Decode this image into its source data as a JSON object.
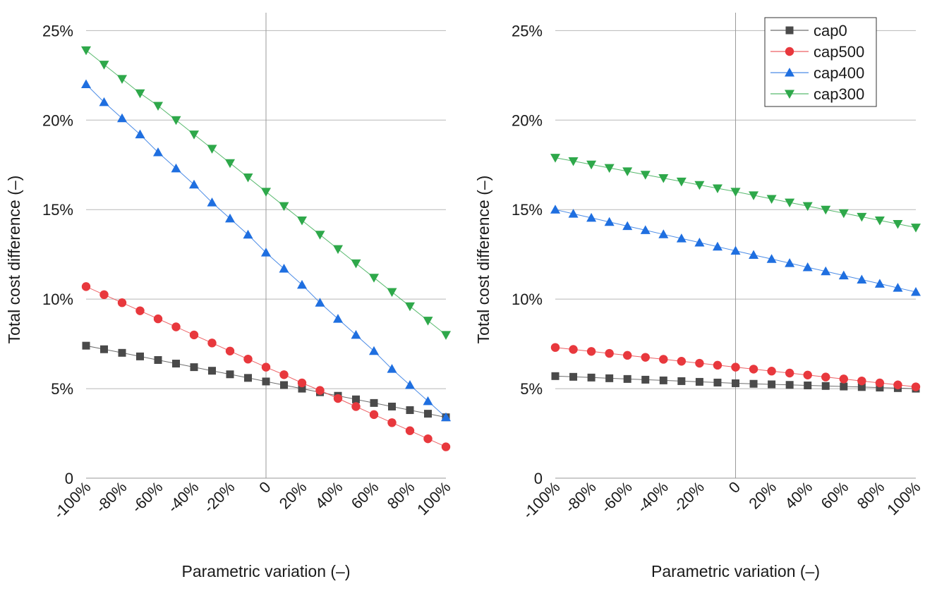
{
  "chart_data": [
    {
      "type": "line",
      "x": [
        -100,
        -90,
        -80,
        -70,
        -60,
        -50,
        -40,
        -30,
        -20,
        -10,
        0,
        10,
        20,
        30,
        40,
        50,
        60,
        70,
        80,
        90,
        100
      ],
      "x_tick_values": [
        -100,
        -80,
        -60,
        -40,
        -20,
        0,
        20,
        40,
        60,
        80,
        100
      ],
      "x_tick_labels": [
        "-100%",
        "-80%",
        "-60%",
        "-40%",
        "-20%",
        "0",
        "20%",
        "40%",
        "60%",
        "80%",
        "100%"
      ],
      "y_tick_values": [
        0,
        5,
        10,
        15,
        20,
        25
      ],
      "y_tick_labels": [
        "0",
        "5%",
        "10%",
        "15%",
        "20%",
        "25%"
      ],
      "xlim": [
        -100,
        100
      ],
      "ylim": [
        0,
        26
      ],
      "xlabel": "Parametric variation (–)",
      "ylabel": "Total cost difference (–)",
      "grid": "horizontal",
      "series": [
        {
          "name": "cap0",
          "color": "#4a4a4a",
          "marker": "square",
          "values": [
            7.4,
            7.2,
            7.0,
            6.8,
            6.6,
            6.4,
            6.2,
            6.0,
            5.8,
            5.6,
            5.4,
            5.2,
            5.0,
            4.8,
            4.6,
            4.4,
            4.2,
            4.0,
            3.8,
            3.6,
            3.4
          ]
        },
        {
          "name": "cap500",
          "color": "#e8383d",
          "marker": "circle",
          "values": [
            10.7,
            10.25,
            9.8,
            9.35,
            8.9,
            8.45,
            8.0,
            7.55,
            7.1,
            6.65,
            6.2,
            5.78,
            5.32,
            4.9,
            4.45,
            4.0,
            3.55,
            3.1,
            2.65,
            2.2,
            1.75
          ]
        },
        {
          "name": "cap400",
          "color": "#1f6fe0",
          "marker": "triangle-up",
          "values": [
            22.0,
            21.0,
            20.1,
            19.2,
            18.2,
            17.3,
            16.4,
            15.4,
            14.5,
            13.6,
            12.6,
            11.7,
            10.8,
            9.8,
            8.9,
            8.0,
            7.1,
            6.1,
            5.2,
            4.3,
            3.4
          ]
        },
        {
          "name": "cap300",
          "color": "#2ea84a",
          "marker": "triangle-down",
          "values": [
            23.9,
            23.1,
            22.3,
            21.5,
            20.8,
            20.0,
            19.2,
            18.4,
            17.6,
            16.8,
            16.0,
            15.2,
            14.4,
            13.6,
            12.8,
            12.0,
            11.2,
            10.4,
            9.6,
            8.8,
            8.0
          ]
        }
      ]
    },
    {
      "type": "line",
      "x": [
        -100,
        -90,
        -80,
        -70,
        -60,
        -50,
        -40,
        -30,
        -20,
        -10,
        0,
        10,
        20,
        30,
        40,
        50,
        60,
        70,
        80,
        90,
        100
      ],
      "x_tick_values": [
        -100,
        -80,
        -60,
        -40,
        -20,
        0,
        20,
        40,
        60,
        80,
        100
      ],
      "x_tick_labels": [
        "-100%",
        "-80%",
        "-60%",
        "-40%",
        "-20%",
        "0",
        "20%",
        "40%",
        "60%",
        "80%",
        "100%"
      ],
      "y_tick_values": [
        0,
        5,
        10,
        15,
        20,
        25
      ],
      "y_tick_labels": [
        "0",
        "5%",
        "10%",
        "15%",
        "20%",
        "25%"
      ],
      "xlim": [
        -100,
        100
      ],
      "ylim": [
        0,
        26
      ],
      "xlabel": "Parametric variation (–)",
      "ylabel": "Total cost difference (–)",
      "grid": "horizontal",
      "legend": "top-right",
      "series": [
        {
          "name": "cap0",
          "color": "#4a4a4a",
          "marker": "square",
          "values": [
            5.7,
            5.66,
            5.62,
            5.58,
            5.54,
            5.5,
            5.46,
            5.42,
            5.38,
            5.34,
            5.3,
            5.27,
            5.24,
            5.21,
            5.18,
            5.15,
            5.12,
            5.09,
            5.06,
            5.03,
            5.0
          ]
        },
        {
          "name": "cap500",
          "color": "#e8383d",
          "marker": "circle",
          "values": [
            7.3,
            7.19,
            7.08,
            6.97,
            6.86,
            6.75,
            6.64,
            6.53,
            6.42,
            6.31,
            6.2,
            6.09,
            5.98,
            5.87,
            5.76,
            5.65,
            5.54,
            5.43,
            5.32,
            5.21,
            5.1
          ]
        },
        {
          "name": "cap400",
          "color": "#1f6fe0",
          "marker": "triangle-up",
          "values": [
            15.0,
            14.77,
            14.54,
            14.31,
            14.08,
            13.85,
            13.62,
            13.39,
            13.16,
            12.93,
            12.7,
            12.47,
            12.24,
            12.01,
            11.78,
            11.55,
            11.32,
            11.09,
            10.86,
            10.63,
            10.4
          ]
        },
        {
          "name": "cap300",
          "color": "#2ea84a",
          "marker": "triangle-down",
          "values": [
            17.9,
            17.71,
            17.52,
            17.33,
            17.14,
            16.95,
            16.76,
            16.57,
            16.38,
            16.19,
            16.0,
            15.8,
            15.6,
            15.4,
            15.2,
            15.0,
            14.8,
            14.6,
            14.4,
            14.2,
            14.0
          ]
        }
      ]
    }
  ]
}
